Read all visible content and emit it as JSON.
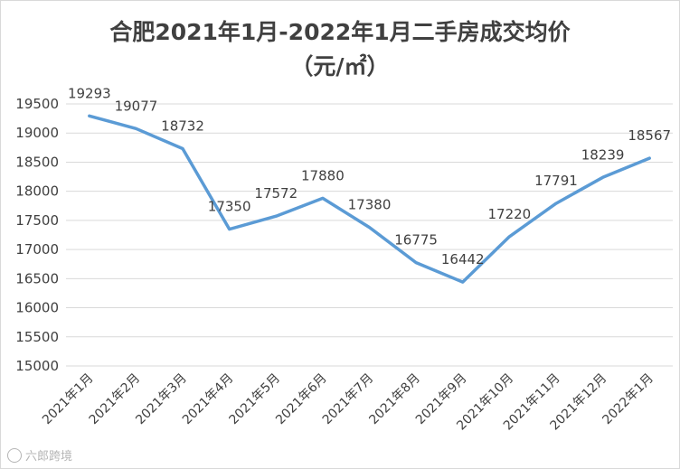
{
  "chart_data": {
    "type": "line",
    "title": "合肥2021年1月-2022年1月二手房成交均价",
    "subtitle": "（元/㎡）",
    "categories": [
      "2021年1月",
      "2021年2月",
      "2021年3月",
      "2021年4月",
      "2021年5月",
      "2021年6月",
      "2021年7月",
      "2021年8月",
      "2021年9月",
      "2021年10月",
      "2021年11月",
      "2021年12月",
      "2022年1月"
    ],
    "series": [
      {
        "values": [
          19293,
          19077,
          18732,
          17350,
          17572,
          17880,
          17380,
          16775,
          16442,
          17220,
          17791,
          18239,
          18567
        ]
      }
    ],
    "ylim": [
      15000,
      19500
    ],
    "ytick_step": 500,
    "grid": true,
    "line_color": "#5b9bd5",
    "grid_color": "#d9d9d9"
  },
  "watermark": {
    "text": "六郎跨境"
  }
}
